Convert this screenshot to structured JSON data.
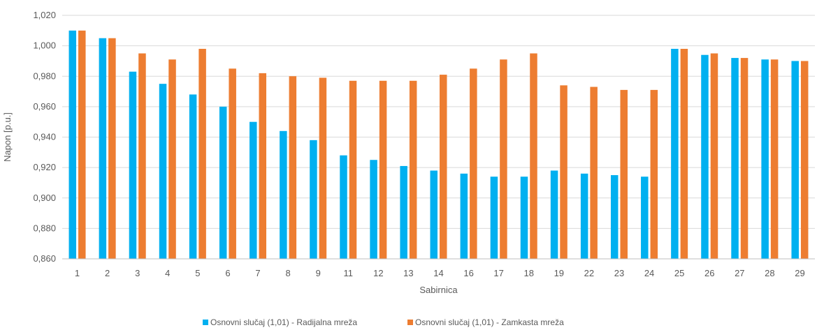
{
  "chart_data": {
    "type": "bar",
    "xlabel": "Sabirnica",
    "ylabel": "Napon [p.u.]",
    "ylim": [
      0.86,
      1.02
    ],
    "y_ticks": [
      "0,860",
      "0,880",
      "0,900",
      "0,920",
      "0,940",
      "0,960",
      "0,980",
      "1,000",
      "1,020"
    ],
    "grid": true,
    "legend_position": "bottom",
    "categories": [
      "1",
      "2",
      "3",
      "4",
      "5",
      "6",
      "7",
      "8",
      "9",
      "11",
      "12",
      "13",
      "14",
      "16",
      "17",
      "18",
      "19",
      "22",
      "23",
      "24",
      "25",
      "26",
      "27",
      "28",
      "29"
    ],
    "series": [
      {
        "name": "Osnovni slučaj (1,01) - Radijalna mreža",
        "color": "#00B0F0",
        "values": [
          1.01,
          1.005,
          0.983,
          0.975,
          0.968,
          0.96,
          0.95,
          0.944,
          0.938,
          0.928,
          0.925,
          0.921,
          0.918,
          0.916,
          0.914,
          0.914,
          0.918,
          0.916,
          0.915,
          0.914,
          0.998,
          0.994,
          0.992,
          0.991,
          0.99
        ]
      },
      {
        "name": "Osnovni slučaj (1,01) - Zamkasta mreža",
        "color": "#ED7D31",
        "values": [
          1.01,
          1.005,
          0.995,
          0.991,
          0.998,
          0.985,
          0.982,
          0.98,
          0.979,
          0.977,
          0.977,
          0.977,
          0.981,
          0.985,
          0.991,
          0.995,
          0.974,
          0.973,
          0.971,
          0.971,
          0.998,
          0.995,
          0.992,
          0.991,
          0.99
        ]
      }
    ]
  }
}
